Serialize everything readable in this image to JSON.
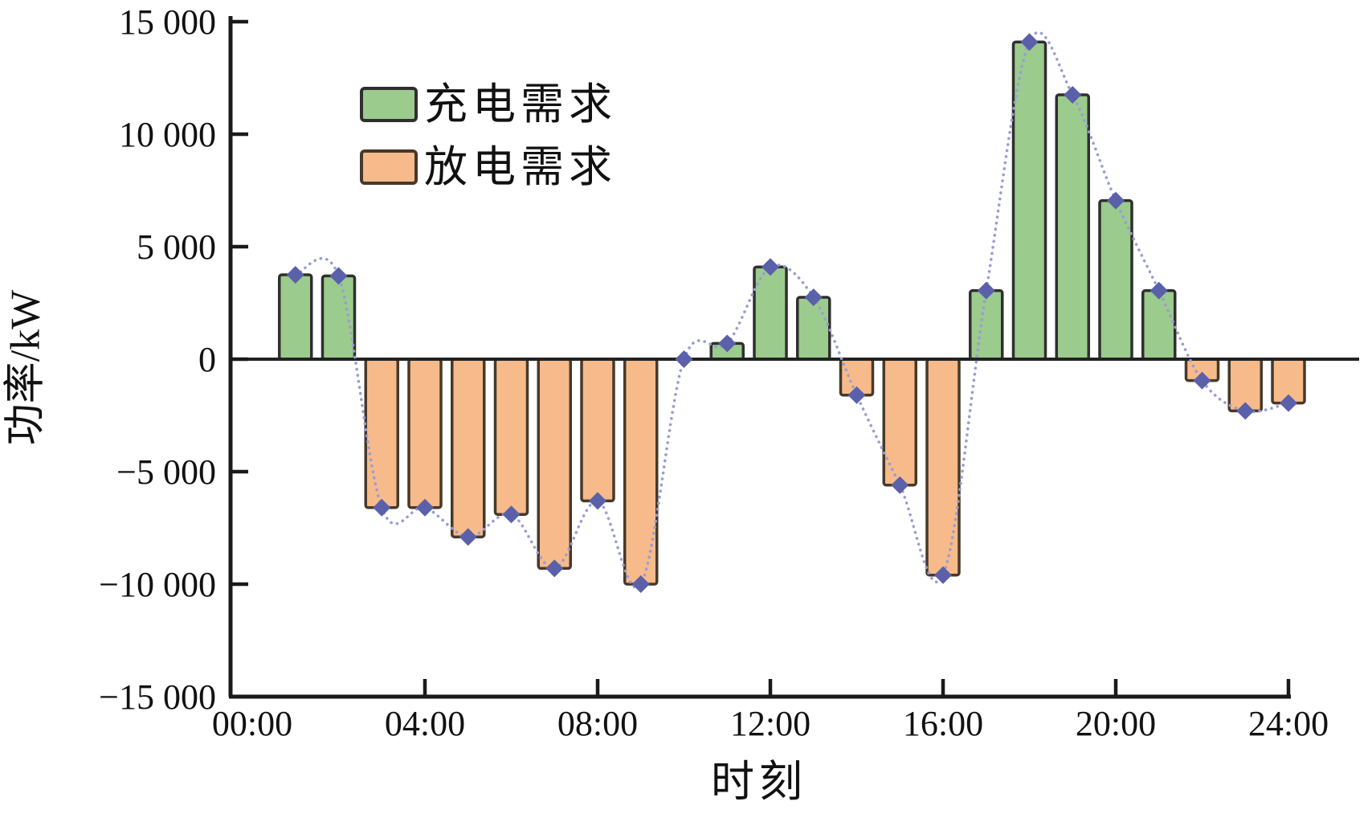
{
  "chart_data": {
    "type": "bar",
    "title": "",
    "xlabel": "时刻",
    "ylabel": "功率/kW",
    "ylim": [
      -15000,
      15000
    ],
    "xlim_hours": [
      0,
      24
    ],
    "grid": false,
    "legend_position": "upper-left-inside",
    "categories_hours": [
      1,
      2,
      3,
      4,
      5,
      6,
      7,
      8,
      9,
      10,
      11,
      12,
      13,
      14,
      15,
      16,
      17,
      18,
      19,
      20,
      21,
      22,
      23,
      24
    ],
    "values": [
      3750,
      3700,
      -6600,
      -6600,
      -7900,
      -6900,
      -9300,
      -6300,
      -10000,
      0,
      700,
      4100,
      2750,
      -1600,
      -5600,
      -9600,
      3050,
      14100,
      11750,
      7050,
      3050,
      -950,
      -2300,
      -1950
    ],
    "line_overlay": {
      "description": "dotted spline with diamond markers tracking the same demand values",
      "values": [
        3750,
        3700,
        -6600,
        -6600,
        -7900,
        -6900,
        -9300,
        -6300,
        -10000,
        0,
        700,
        4100,
        2750,
        -1600,
        -5600,
        -9600,
        3050,
        14100,
        11750,
        7050,
        3050,
        -950,
        -2300,
        -1950
      ]
    },
    "ytick_values": [
      15000,
      10000,
      5000,
      0,
      -5000,
      -10000,
      -15000
    ],
    "ytick_labels": [
      "15 000",
      "10 000",
      "5 000",
      "0",
      "−5 000",
      "−10 000",
      "−15 000"
    ],
    "xtick_hours": [
      0,
      4,
      8,
      12,
      16,
      20,
      24
    ],
    "xtick_labels": [
      "00:00",
      "04:00",
      "08:00",
      "12:00",
      "16:00",
      "20:00",
      "24:00"
    ],
    "legend": [
      {
        "label": "充电需求",
        "color": "#9bcb8d",
        "border": "#2f2f2f"
      },
      {
        "label": "放电需求",
        "color": "#f7ba8a",
        "border": "#46392a"
      }
    ],
    "colors": {
      "charging_bar": "#9bcb8d",
      "charging_border": "#2f2f2f",
      "discharging_bar": "#f7ba8a",
      "discharging_border": "#46392a",
      "line": "#989dd3",
      "marker": "#5a60a9",
      "axis": "#1a1a1a"
    }
  }
}
